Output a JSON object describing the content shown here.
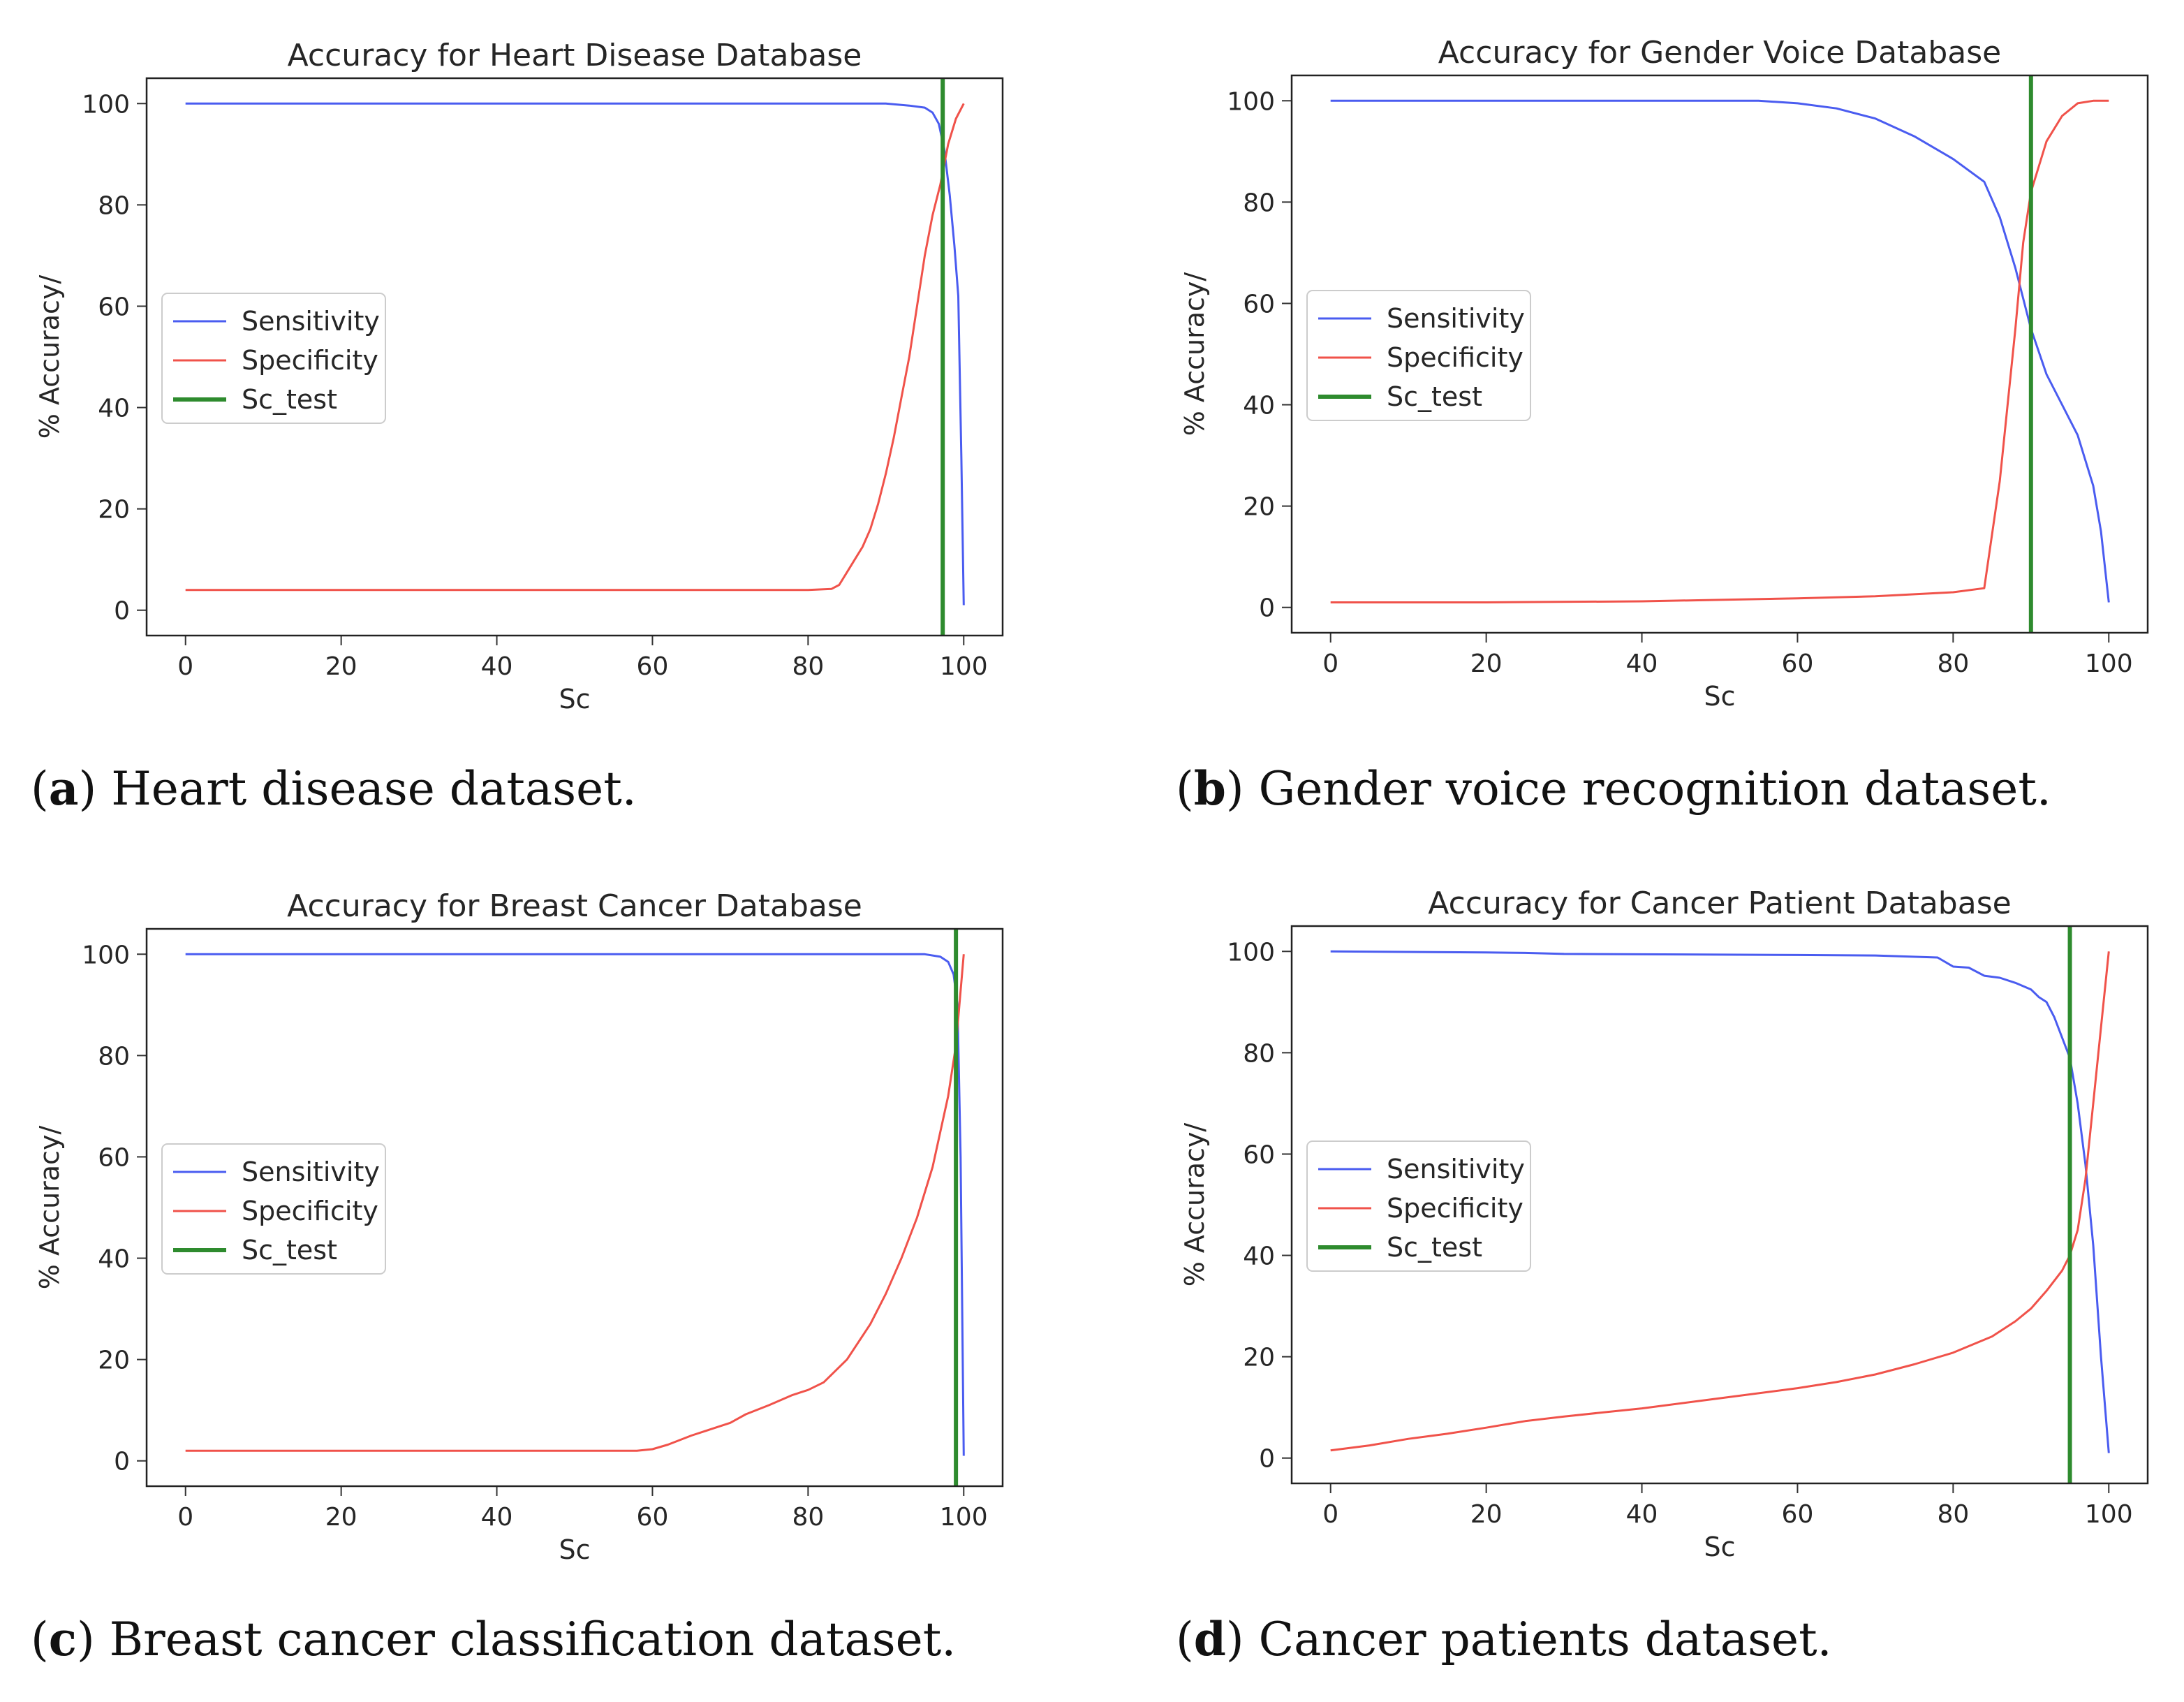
{
  "chart_data": [
    {
      "type": "line",
      "title": "Accuracy  for Heart Disease Database",
      "xlabel": "Sc",
      "ylabel": "% Accuracy/",
      "xlim": [
        -5,
        105
      ],
      "ylim": [
        -5,
        105
      ],
      "xticks": [
        "0",
        "20",
        "40",
        "60",
        "80",
        "100"
      ],
      "yticks": [
        "0",
        "20",
        "40",
        "60",
        "80",
        "100"
      ],
      "legend_position": "center-left",
      "vline": {
        "name": "Sc_test",
        "x": 97.3,
        "color": "#2e8b2e"
      },
      "series": [
        {
          "name": "Sensitivity",
          "color": "#4a5cf0",
          "points": [
            [
              0,
              100
            ],
            [
              20,
              100
            ],
            [
              40,
              100
            ],
            [
              60,
              100
            ],
            [
              80,
              100
            ],
            [
              90,
              100
            ],
            [
              93,
              99.6
            ],
            [
              95,
              99.2
            ],
            [
              96,
              98.2
            ],
            [
              96.8,
              96
            ],
            [
              97.5,
              91
            ],
            [
              98.2,
              82
            ],
            [
              98.8,
              72
            ],
            [
              99.3,
              62
            ],
            [
              99.7,
              30
            ],
            [
              100,
              1
            ]
          ]
        },
        {
          "name": "Specificity",
          "color": "#f0524a",
          "points": [
            [
              0,
              4
            ],
            [
              20,
              4
            ],
            [
              40,
              4
            ],
            [
              60,
              4
            ],
            [
              80,
              4
            ],
            [
              83,
              4.2
            ],
            [
              84,
              5
            ],
            [
              85,
              7.5
            ],
            [
              86,
              10
            ],
            [
              87,
              12.5
            ],
            [
              88,
              16
            ],
            [
              89,
              21
            ],
            [
              90,
              27
            ],
            [
              91,
              34
            ],
            [
              92,
              42
            ],
            [
              93,
              50
            ],
            [
              94,
              60
            ],
            [
              95,
              70
            ],
            [
              96,
              78
            ],
            [
              97,
              84
            ],
            [
              98,
              92
            ],
            [
              99,
              97
            ],
            [
              100,
              100
            ]
          ]
        }
      ]
    },
    {
      "type": "line",
      "title": "Accuracy  for Gender Voice Database",
      "xlabel": "Sc",
      "ylabel": "% Accuracy/",
      "xlim": [
        -5,
        105
      ],
      "ylim": [
        -5,
        105
      ],
      "xticks": [
        "0",
        "20",
        "40",
        "60",
        "80",
        "100"
      ],
      "yticks": [
        "0",
        "20",
        "40",
        "60",
        "80",
        "100"
      ],
      "legend_position": "center-left",
      "vline": {
        "name": "Sc_test",
        "x": 90,
        "color": "#2e8b2e"
      },
      "series": [
        {
          "name": "Sensitivity",
          "color": "#4a5cf0",
          "points": [
            [
              0,
              100
            ],
            [
              20,
              100
            ],
            [
              40,
              100
            ],
            [
              55,
              100
            ],
            [
              60,
              99.5
            ],
            [
              65,
              98.5
            ],
            [
              70,
              96.5
            ],
            [
              75,
              93
            ],
            [
              80,
              88.5
            ],
            [
              84,
              84
            ],
            [
              86,
              77
            ],
            [
              88,
              67
            ],
            [
              90,
              55
            ],
            [
              92,
              46
            ],
            [
              94,
              40
            ],
            [
              96,
              34
            ],
            [
              98,
              24
            ],
            [
              99,
              15
            ],
            [
              100,
              1
            ]
          ]
        },
        {
          "name": "Specificity",
          "color": "#f0524a",
          "points": [
            [
              0,
              1
            ],
            [
              20,
              1
            ],
            [
              40,
              1.2
            ],
            [
              60,
              1.8
            ],
            [
              70,
              2.2
            ],
            [
              80,
              3
            ],
            [
              84,
              3.8
            ],
            [
              86,
              25
            ],
            [
              88,
              55
            ],
            [
              89,
              72
            ],
            [
              90,
              82
            ],
            [
              92,
              92
            ],
            [
              94,
              97
            ],
            [
              96,
              99.5
            ],
            [
              98,
              100
            ],
            [
              100,
              100
            ]
          ]
        }
      ]
    },
    {
      "type": "line",
      "title": "Accuracy  for Breast Cancer Database",
      "xlabel": "Sc",
      "ylabel": "% Accuracy/",
      "xlim": [
        -5,
        105
      ],
      "ylim": [
        -5,
        105
      ],
      "xticks": [
        "0",
        "20",
        "40",
        "60",
        "80",
        "100"
      ],
      "yticks": [
        "0",
        "20",
        "40",
        "60",
        "80",
        "100"
      ],
      "legend_position": "center-left",
      "vline": {
        "name": "Sc_test",
        "x": 99,
        "color": "#2e8b2e"
      },
      "series": [
        {
          "name": "Sensitivity",
          "color": "#4a5cf0",
          "points": [
            [
              0,
              100
            ],
            [
              40,
              100
            ],
            [
              80,
              100
            ],
            [
              95,
              100
            ],
            [
              97,
              99.5
            ],
            [
              98,
              98.5
            ],
            [
              98.7,
              96
            ],
            [
              99.2,
              90
            ],
            [
              99.6,
              60
            ],
            [
              100,
              1
            ]
          ]
        },
        {
          "name": "Specificity",
          "color": "#f0524a",
          "points": [
            [
              0,
              2
            ],
            [
              20,
              2
            ],
            [
              40,
              2
            ],
            [
              58,
              2
            ],
            [
              60,
              2.3
            ],
            [
              62,
              3.2
            ],
            [
              65,
              5
            ],
            [
              68,
              6.5
            ],
            [
              70,
              7.5
            ],
            [
              72,
              9.2
            ],
            [
              75,
              11
            ],
            [
              78,
              13
            ],
            [
              80,
              14
            ],
            [
              82,
              15.5
            ],
            [
              85,
              20
            ],
            [
              88,
              27
            ],
            [
              90,
              33
            ],
            [
              92,
              40
            ],
            [
              94,
              48
            ],
            [
              96,
              58
            ],
            [
              98,
              72
            ],
            [
              99,
              82
            ],
            [
              100,
              100
            ]
          ]
        }
      ]
    },
    {
      "type": "line",
      "title": "Accuracy  for Cancer Patient Database",
      "xlabel": "Sc",
      "ylabel": "% Accuracy/",
      "xlim": [
        -5,
        105
      ],
      "ylim": [
        -5,
        105
      ],
      "xticks": [
        "0",
        "20",
        "40",
        "60",
        "80",
        "100"
      ],
      "yticks": [
        "0",
        "20",
        "40",
        "60",
        "80",
        "100"
      ],
      "legend_position": "center-left",
      "vline": {
        "name": "Sc_test",
        "x": 95,
        "color": "#2e8b2e"
      },
      "series": [
        {
          "name": "Sensitivity",
          "color": "#4a5cf0",
          "points": [
            [
              0,
              100
            ],
            [
              20,
              99.8
            ],
            [
              25,
              99.7
            ],
            [
              30,
              99.5
            ],
            [
              60,
              99.3
            ],
            [
              70,
              99.2
            ],
            [
              78,
              98.8
            ],
            [
              80,
              97
            ],
            [
              82,
              96.8
            ],
            [
              84,
              95.2
            ],
            [
              86,
              94.8
            ],
            [
              88,
              93.8
            ],
            [
              90,
              92.5
            ],
            [
              91,
              91
            ],
            [
              92,
              90
            ],
            [
              93,
              87
            ],
            [
              94,
              83
            ],
            [
              95,
              79
            ],
            [
              96,
              70
            ],
            [
              97,
              58
            ],
            [
              98,
              42
            ],
            [
              99,
              20
            ],
            [
              100,
              1
            ]
          ]
        },
        {
          "name": "Specificity",
          "color": "#f0524a",
          "points": [
            [
              0,
              1.5
            ],
            [
              5,
              2.5
            ],
            [
              10,
              3.8
            ],
            [
              15,
              4.8
            ],
            [
              20,
              6
            ],
            [
              25,
              7.3
            ],
            [
              30,
              8.2
            ],
            [
              40,
              9.8
            ],
            [
              50,
              11.8
            ],
            [
              60,
              13.8
            ],
            [
              65,
              15
            ],
            [
              70,
              16.5
            ],
            [
              75,
              18.5
            ],
            [
              80,
              20.8
            ],
            [
              85,
              24
            ],
            [
              88,
              27
            ],
            [
              90,
              29.5
            ],
            [
              92,
              33
            ],
            [
              94,
              37
            ],
            [
              95,
              40
            ],
            [
              96,
              45
            ],
            [
              97,
              55
            ],
            [
              98,
              70
            ],
            [
              99,
              85
            ],
            [
              100,
              100
            ]
          ]
        }
      ]
    }
  ],
  "captions": [
    {
      "letter": "a",
      "text": " Heart disease dataset."
    },
    {
      "letter": "b",
      "text": " Gender voice recognition dataset."
    },
    {
      "letter": "c",
      "text": " Breast cancer classification dataset."
    },
    {
      "letter": "d",
      "text": " Cancer patients dataset."
    }
  ]
}
